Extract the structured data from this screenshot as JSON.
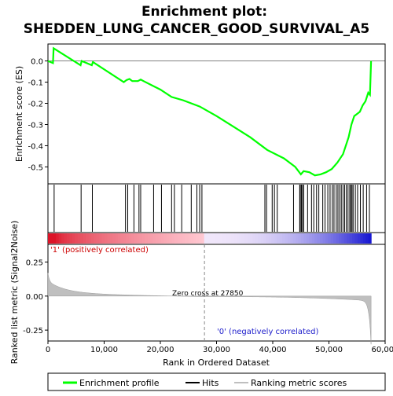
{
  "chart_data": {
    "type": "line",
    "title_line1": "Enrichment plot:",
    "title_line2": "SHEDDEN_LUNG_CANCER_GOOD_SURVIVAL_A5",
    "xlabel": "Rank in Ordered Dataset",
    "es_panel": {
      "ylabel": "Enrichment score (ES)",
      "ylim": [
        -0.58,
        0.08
      ],
      "yticks": [
        0.0,
        -0.1,
        -0.2,
        -0.3,
        -0.4,
        -0.5
      ],
      "ytick_labels": [
        "0.0",
        "-0.1",
        "-0.2",
        "-0.3",
        "-0.4",
        "-0.5"
      ],
      "series_name": "Enrichment profile",
      "color": "#00ff00",
      "points": [
        [
          0,
          0.0
        ],
        [
          900,
          -0.01
        ],
        [
          1000,
          0.06
        ],
        [
          5800,
          -0.02
        ],
        [
          6000,
          0.0
        ],
        [
          7800,
          -0.02
        ],
        [
          8000,
          -0.005
        ],
        [
          13500,
          -0.1
        ],
        [
          14000,
          -0.09
        ],
        [
          14500,
          -0.085
        ],
        [
          15000,
          -0.095
        ],
        [
          16000,
          -0.095
        ],
        [
          16500,
          -0.088
        ],
        [
          17000,
          -0.095
        ],
        [
          18500,
          -0.115
        ],
        [
          20000,
          -0.135
        ],
        [
          22000,
          -0.17
        ],
        [
          24000,
          -0.185
        ],
        [
          27000,
          -0.215
        ],
        [
          30000,
          -0.26
        ],
        [
          33000,
          -0.31
        ],
        [
          36000,
          -0.36
        ],
        [
          39000,
          -0.42
        ],
        [
          42000,
          -0.46
        ],
        [
          44000,
          -0.5
        ],
        [
          45000,
          -0.535
        ],
        [
          45500,
          -0.52
        ],
        [
          46500,
          -0.525
        ],
        [
          47500,
          -0.54
        ],
        [
          48500,
          -0.535
        ],
        [
          49500,
          -0.525
        ],
        [
          50500,
          -0.51
        ],
        [
          51500,
          -0.48
        ],
        [
          52500,
          -0.44
        ],
        [
          53500,
          -0.36
        ],
        [
          54000,
          -0.3
        ],
        [
          54500,
          -0.26
        ],
        [
          55000,
          -0.25
        ],
        [
          55500,
          -0.24
        ],
        [
          56000,
          -0.21
        ],
        [
          56500,
          -0.19
        ],
        [
          57000,
          -0.15
        ],
        [
          57300,
          -0.16
        ],
        [
          57500,
          0.0
        ]
      ]
    },
    "hits": {
      "series_name": "Hits",
      "positions": [
        1100,
        5900,
        7900,
        13800,
        14200,
        15300,
        16200,
        16500,
        18800,
        20200,
        22000,
        22500,
        23800,
        25500,
        26500,
        27000,
        27400,
        38600,
        38900,
        39900,
        40300,
        40800,
        43700,
        44800,
        44900,
        45100,
        45300,
        45500,
        46200,
        46900,
        47300,
        47800,
        48200,
        48900,
        49300,
        49800,
        50200,
        50600,
        50900,
        51300,
        51600,
        51900,
        52200,
        52500,
        52800,
        53100,
        53400,
        53700,
        53900,
        54100,
        54300,
        54700,
        55100,
        55600,
        56100,
        56700,
        57200
      ]
    },
    "heat_bar": {
      "label_positive": "'1' (positively correlated)",
      "label_negative": "'0' (negatively correlated)",
      "positive_color": "#e0202a",
      "negative_color": "#2020d0"
    },
    "metric_panel": {
      "ylabel": "Ranked list metric (Signal2Noise)",
      "series_name": "Ranking metric scores",
      "ylim": [
        -0.33,
        0.38
      ],
      "yticks": [
        0.25,
        0.0,
        -0.25
      ],
      "ytick_labels": [
        "0.25",
        "0.00",
        "-0.25"
      ],
      "zero_cross_label": "Zero cross at 27850",
      "zero_cross": 27850
    },
    "xlim": [
      0,
      60000
    ],
    "xticks": [
      0,
      10000,
      20000,
      30000,
      40000,
      50000,
      60000
    ],
    "xtick_labels": [
      "0",
      "10,000",
      "20,000",
      "30,000",
      "40,000",
      "50,000",
      "60,000"
    ],
    "n_genes": 57500,
    "legend": {
      "placement": "bottom",
      "entries": [
        "Enrichment profile",
        "Hits",
        "Ranking metric scores"
      ]
    }
  }
}
